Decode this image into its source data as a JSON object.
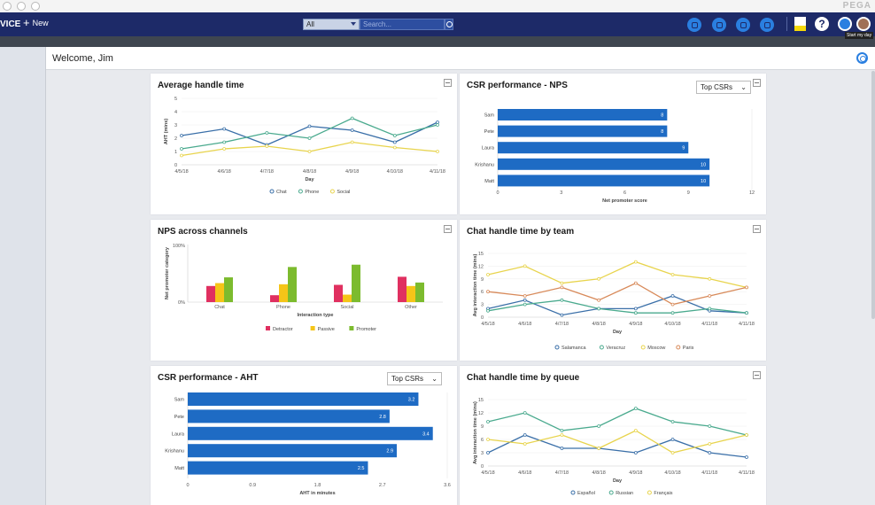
{
  "app": {
    "name": "VICE",
    "new_label": "New",
    "logo": "PEGA"
  },
  "search": {
    "scope": "All",
    "placeholder": "Search..."
  },
  "tooltip": "Start my day",
  "welcome": "Welcome, Jim",
  "colors": {
    "nav": "#1d2a68",
    "blue": "#1e6bc4",
    "chat": "#3a6fa8",
    "phone": "#4aaa8e",
    "social": "#e8d44d",
    "detractor": "#e03060",
    "passive": "#f5c518",
    "promoter": "#7cbb2e",
    "salamanca": "#3a6fa8",
    "veracruz": "#4aaa8e",
    "moscow": "#e8d44d",
    "paris": "#d88a5a",
    "espanol": "#3a6fa8",
    "russian": "#4aaa8e",
    "francais": "#e8d44d"
  },
  "icons": [
    "globe-icon",
    "chat-icon",
    "message-icon",
    "phone-icon",
    "note-icon",
    "help-icon",
    "gear-icon",
    "avatar"
  ],
  "charts": {
    "aht": {
      "title": "Average handle time",
      "chart_data": {
        "type": "line",
        "x": [
          "4/5/18",
          "4/6/18",
          "4/7/18",
          "4/8/18",
          "4/9/18",
          "4/10/18",
          "4/11/18"
        ],
        "series": [
          {
            "name": "Chat",
            "values": [
              2.2,
              2.7,
              1.5,
              2.9,
              2.6,
              1.7,
              3.2
            ]
          },
          {
            "name": "Phone",
            "values": [
              1.2,
              1.7,
              2.4,
              2.0,
              3.5,
              2.2,
              3.0
            ]
          },
          {
            "name": "Social",
            "values": [
              0.7,
              1.2,
              1.4,
              1.0,
              1.7,
              1.3,
              1.0
            ]
          }
        ],
        "ylim": [
          0,
          5
        ],
        "yticks": [
          "0",
          "1",
          "2",
          "3",
          "4",
          "5"
        ],
        "xlabel": "Day",
        "ylabel": "AHT (mins)"
      }
    },
    "nps": {
      "title": "CSR performance - NPS",
      "select": "Top CSRs",
      "chart_data": {
        "type": "bar",
        "orientation": "horizontal",
        "categories": [
          "Sam",
          "Pete",
          "Laura",
          "Krishanu",
          "Matt"
        ],
        "values": [
          8,
          8,
          9,
          10,
          10
        ],
        "xlim": [
          0,
          12
        ],
        "xticks": [
          "0",
          "3",
          "6",
          "9",
          "12"
        ],
        "xlabel": "Net promoter score"
      }
    },
    "channels": {
      "title": "NPS across channels",
      "chart_data": {
        "type": "bar",
        "categories": [
          "Chat",
          "Phone",
          "Social",
          "Other"
        ],
        "series": [
          {
            "name": "Detractor",
            "values": [
              28,
              12,
              30,
              44
            ]
          },
          {
            "name": "Passive",
            "values": [
              33,
              31,
              13,
              28
            ]
          },
          {
            "name": "Promoter",
            "values": [
              43,
              61,
              65,
              34
            ]
          }
        ],
        "ylim": [
          0,
          100
        ],
        "yticks": [
          "0%",
          "100%"
        ],
        "xlabel": "Interaction type",
        "ylabel": "Net promoter category"
      }
    },
    "team": {
      "title": "Chat handle time by team",
      "chart_data": {
        "type": "line",
        "x": [
          "4/5/18",
          "4/6/18",
          "4/7/18",
          "4/8/18",
          "4/9/18",
          "4/10/18",
          "4/11/18",
          "4/11/18"
        ],
        "series": [
          {
            "name": "Salamanca",
            "values": [
              2,
              4,
              0.5,
              2,
              2,
              5,
              1.5,
              1
            ]
          },
          {
            "name": "Veracruz",
            "values": [
              1.5,
              3,
              4,
              2,
              1,
              1,
              2,
              1
            ]
          },
          {
            "name": "Moscow",
            "values": [
              10,
              12,
              8,
              9,
              13,
              10,
              9,
              7
            ]
          },
          {
            "name": "Paris",
            "values": [
              6,
              5,
              7,
              4,
              8,
              3,
              5,
              7
            ]
          }
        ],
        "ylim": [
          0,
          15
        ],
        "yticks": [
          "0",
          "3",
          "6",
          "9",
          "12",
          "15"
        ],
        "xlabel": "Day",
        "ylabel": "Avg interaction time (mins)"
      }
    },
    "csraht": {
      "title": "CSR performance - AHT",
      "select": "Top CSRs",
      "chart_data": {
        "type": "bar",
        "orientation": "horizontal",
        "categories": [
          "Sam",
          "Pete",
          "Laura",
          "Krishanu",
          "Matt"
        ],
        "values": [
          3.2,
          2.8,
          3.4,
          2.9,
          2.5
        ],
        "xlim": [
          0,
          3.6
        ],
        "xticks": [
          "0",
          "0.9",
          "1.8",
          "2.7",
          "3.6"
        ],
        "xlabel": "AHT in minutes"
      }
    },
    "queue": {
      "title": "Chat handle time by queue",
      "chart_data": {
        "type": "line",
        "x": [
          "4/5/18",
          "4/6/18",
          "4/7/18",
          "4/8/18",
          "4/9/18",
          "4/10/18",
          "4/11/18",
          "4/11/18"
        ],
        "series": [
          {
            "name": "Español",
            "values": [
              3,
              7,
              4,
              4,
              3,
              6,
              3,
              2
            ]
          },
          {
            "name": "Russian",
            "values": [
              10,
              12,
              8,
              9,
              13,
              10,
              9,
              7
            ]
          },
          {
            "name": "Français",
            "values": [
              6,
              5,
              7,
              4,
              8,
              3,
              5,
              7
            ]
          }
        ],
        "ylim": [
          0,
          15
        ],
        "yticks": [
          "0",
          "3",
          "6",
          "9",
          "12",
          "15"
        ],
        "xlabel": "Day",
        "ylabel": "Avg interaction time (mins)"
      }
    }
  }
}
